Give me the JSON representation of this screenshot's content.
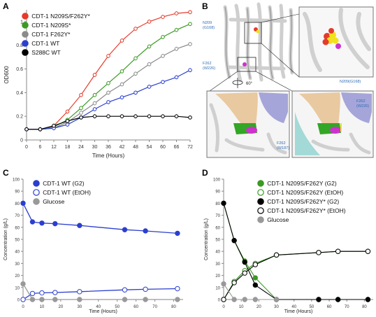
{
  "panels": {
    "A": "A",
    "B": "B",
    "C": "C",
    "D": "D"
  },
  "structure": {
    "labels": {
      "n209_top": "N209\n(G168)",
      "f262_top": "F262\n(W226)",
      "n209_zoom": "N209(G168)",
      "rotation": "60°",
      "f262_right": "F262\n(W226)",
      "f262_bottom": "F262\n(W187)"
    },
    "colors": {
      "helix": "#d0d0d0",
      "red": "#e53b2b",
      "yellow": "#f1e21b",
      "magenta": "#cc33cc",
      "green": "#33a626",
      "tan": "#e9c9a0",
      "lavender": "#a5a5d9",
      "cyan": "#a3d9d6",
      "annotation": "#2e6db4"
    }
  },
  "chart_data": [
    {
      "type": "line",
      "panel": "A",
      "xlabel": "Time (Hours)",
      "ylabel": "OD600",
      "xlim": [
        0,
        72
      ],
      "ylim": [
        0,
        1.1
      ],
      "xticks": [
        0,
        6,
        12,
        18,
        24,
        30,
        36,
        42,
        48,
        54,
        60,
        66,
        72
      ],
      "yticks": [
        0,
        0.2,
        0.4,
        0.6,
        0.8,
        1.0
      ],
      "ytick_labels": [
        "0",
        "0.2",
        "0.4",
        "0.6",
        "0.8",
        "1"
      ],
      "legend_position": "top-left",
      "x": [
        0,
        6,
        12,
        18,
        24,
        30,
        36,
        42,
        48,
        54,
        60,
        66,
        72
      ],
      "series": [
        {
          "name": "CDT-1 N209S/F262Y*",
          "color": "#e53b2b",
          "values": [
            0.09,
            0.09,
            0.12,
            0.24,
            0.38,
            0.55,
            0.71,
            0.84,
            0.94,
            1.0,
            1.04,
            1.07,
            1.08
          ]
        },
        {
          "name": "CDT-1 N209S*",
          "color": "#3a9a22",
          "values": [
            0.09,
            0.09,
            0.11,
            0.17,
            0.27,
            0.38,
            0.48,
            0.58,
            0.69,
            0.79,
            0.87,
            0.93,
            0.98
          ]
        },
        {
          "name": "CDT-1 F262Y*",
          "color": "#8a8a8a",
          "values": [
            0.09,
            0.09,
            0.1,
            0.15,
            0.23,
            0.31,
            0.4,
            0.47,
            0.56,
            0.64,
            0.71,
            0.77,
            0.81
          ]
        },
        {
          "name": "CDT-1 WT",
          "color": "#2b3fcf",
          "values": [
            0.09,
            0.09,
            0.1,
            0.13,
            0.19,
            0.26,
            0.32,
            0.36,
            0.4,
            0.45,
            0.49,
            0.53,
            0.59
          ]
        },
        {
          "name": "S288C WT",
          "color": "#000000",
          "values": [
            0.09,
            0.09,
            0.12,
            0.16,
            0.19,
            0.2,
            0.2,
            0.2,
            0.2,
            0.2,
            0.2,
            0.2,
            0.19
          ]
        }
      ]
    },
    {
      "type": "line",
      "panel": "C",
      "xlabel": "Time (Hours)",
      "ylabel": "Concentration (g/L)",
      "xlim": [
        0,
        85
      ],
      "ylim": [
        0,
        100
      ],
      "xticks": [
        0,
        10,
        20,
        30,
        40,
        50,
        60,
        70,
        80
      ],
      "yticks": [
        0,
        10,
        20,
        30,
        40,
        50,
        60,
        70,
        80,
        90,
        100
      ],
      "legend_position": "top-left",
      "series": [
        {
          "name": "CDT-1 WT (G2)",
          "color": "#2b3fcf",
          "marker": "filled",
          "x": [
            0,
            5,
            10,
            17,
            30,
            54,
            65,
            82
          ],
          "values": [
            80,
            64.5,
            63.5,
            63,
            61.5,
            58,
            57,
            55
          ]
        },
        {
          "name": "CDT-1 WT (EtOH)",
          "color": "#2b3fcf",
          "marker": "open",
          "x": [
            0,
            5,
            10,
            17,
            30,
            54,
            65,
            82
          ],
          "values": [
            0,
            5,
            5.5,
            5.8,
            6.5,
            8,
            8.5,
            9
          ]
        },
        {
          "name": "Glucose",
          "color": "#999999",
          "marker": "filled",
          "x": [
            0,
            5,
            10,
            17,
            30,
            54,
            65,
            82
          ],
          "values": [
            13,
            0,
            0,
            0,
            0,
            0,
            0,
            0
          ]
        }
      ]
    },
    {
      "type": "line",
      "panel": "D",
      "xlabel": "Time (Hours)",
      "ylabel": "Concentration (g/L)",
      "xlim": [
        0,
        85
      ],
      "ylim": [
        0,
        100
      ],
      "xticks": [
        0,
        10,
        20,
        30,
        40,
        50,
        60,
        70,
        80
      ],
      "yticks": [
        0,
        10,
        20,
        30,
        40,
        50,
        60,
        70,
        80,
        90,
        100
      ],
      "legend_position": "top-right",
      "series": [
        {
          "name": "CDT-1 N209S/F262Y (G2)",
          "color": "#3a9a22",
          "marker": "filled",
          "x": [
            0,
            6,
            12,
            18,
            30,
            54,
            65,
            82
          ],
          "values": [
            80,
            49,
            32,
            18,
            0,
            0,
            0,
            0
          ]
        },
        {
          "name": "CDT-1 N209S/F262Y (EtOH)",
          "color": "#3a9a22",
          "marker": "open",
          "x": [
            0,
            6,
            12,
            18,
            30,
            54,
            65,
            82
          ],
          "values": [
            0,
            15,
            24,
            30,
            37,
            39,
            40,
            40
          ]
        },
        {
          "name": "CDT-1 N209S/F262Y* (G2)",
          "color": "#000000",
          "marker": "filled",
          "x": [
            0,
            6,
            12,
            18,
            30,
            54,
            65,
            82
          ],
          "values": [
            80,
            49,
            31,
            12,
            0,
            0,
            0,
            0
          ]
        },
        {
          "name": "CDT-1 N209S/F262Y* (EtOH)",
          "color": "#000000",
          "marker": "open",
          "x": [
            0,
            6,
            12,
            18,
            30,
            54,
            65,
            82
          ],
          "values": [
            0,
            14,
            22,
            29,
            37,
            39,
            40,
            40
          ]
        },
        {
          "name": "Glucose",
          "color": "#999999",
          "marker": "filled",
          "x": [
            0,
            6,
            12,
            18,
            30
          ],
          "values": [
            13,
            0,
            0,
            0,
            0
          ]
        }
      ]
    }
  ]
}
